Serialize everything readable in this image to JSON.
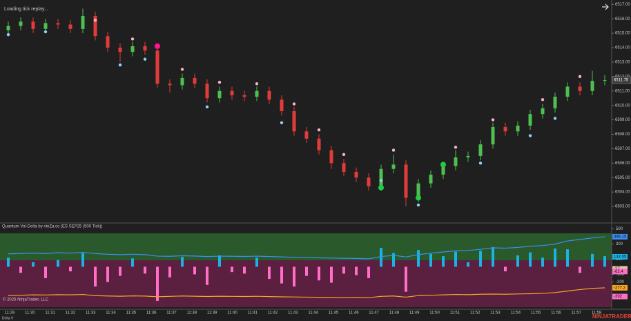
{
  "ui": {
    "status": "Loading tick replay...",
    "copyright": "© 2025 NinjaTrader, LLC",
    "panel_label": "Delta V",
    "brand": "NINJATRADER"
  },
  "chart_data": [
    {
      "type": "candlestick",
      "open": [
        6515.2,
        6515.5,
        6515.8,
        6515.3,
        6515.7,
        6515.6,
        6515.3,
        6516.2,
        6514.8,
        6514.0,
        6513.7,
        6514.1,
        6513.8,
        6511.5,
        6511.4,
        6511.9,
        6511.5,
        6510.5,
        6511.0,
        6510.7,
        6510.6,
        6511.0,
        6510.4,
        6509.6,
        6508.2,
        6507.7,
        6506.9,
        6506.0,
        6505.4,
        6505.0,
        6504.4,
        6505.6,
        6505.9,
        6503.6,
        6504.6,
        6505.2,
        6505.8,
        6506.4,
        6506.5,
        6507.3,
        6508.5,
        6508.2,
        6508.6,
        6509.4,
        6509.8,
        6510.6,
        6511.3,
        6511.0,
        6511.7
      ],
      "high": [
        6515.8,
        6516.1,
        6516.1,
        6516.0,
        6516.0,
        6515.9,
        6516.7,
        6516.5,
        6515.1,
        6514.3,
        6514.4,
        6514.4,
        6514.1,
        6511.8,
        6512.2,
        6512.2,
        6511.8,
        6511.3,
        6511.3,
        6511.0,
        6511.3,
        6511.3,
        6510.7,
        6509.9,
        6508.5,
        6508.0,
        6507.2,
        6506.3,
        6505.7,
        6505.3,
        6505.9,
        6506.6,
        6506.2,
        6504.9,
        6505.5,
        6506.1,
        6506.9,
        6506.8,
        6507.6,
        6508.8,
        6508.8,
        6508.9,
        6509.7,
        6510.1,
        6510.9,
        6511.6,
        6511.6,
        6512.4,
        6512.1
      ],
      "low": [
        6514.9,
        6515.2,
        6515.0,
        6515.0,
        6515.3,
        6515.0,
        6515.0,
        6514.5,
        6513.7,
        6513.0,
        6513.4,
        6513.5,
        6511.2,
        6510.9,
        6511.1,
        6511.2,
        6510.2,
        6510.2,
        6510.4,
        6510.3,
        6510.3,
        6510.1,
        6509.3,
        6507.9,
        6507.4,
        6506.6,
        6505.6,
        6505.1,
        6504.7,
        6504.1,
        6504.1,
        6505.3,
        6503.0,
        6503.3,
        6504.3,
        6504.9,
        6505.5,
        6506.1,
        6506.2,
        6507.0,
        6507.9,
        6507.9,
        6508.3,
        6509.1,
        6509.5,
        6510.3,
        6510.7,
        6510.7,
        6511.4
      ],
      "close": [
        6515.5,
        6515.8,
        6515.3,
        6515.7,
        6515.6,
        6515.3,
        6516.2,
        6514.8,
        6514.0,
        6513.7,
        6514.1,
        6513.8,
        6511.5,
        6511.4,
        6511.9,
        6511.5,
        6510.5,
        6511.0,
        6510.7,
        6510.6,
        6511.0,
        6510.4,
        6509.6,
        6508.2,
        6507.7,
        6506.9,
        6506.0,
        6505.4,
        6505.0,
        6504.4,
        6505.6,
        6505.9,
        6503.6,
        6504.6,
        6505.2,
        6505.8,
        6506.4,
        6506.5,
        6507.3,
        6508.5,
        6508.2,
        6508.6,
        6509.4,
        6509.8,
        6510.6,
        6511.3,
        6511.0,
        6511.7,
        6511.75
      ],
      "up_color": "#4fbf4f",
      "down_color": "#e23b3b",
      "markers": [
        {
          "color": "#f4b6c8",
          "size": 2.2,
          "points": [
            [
              7,
              6515.9
            ],
            [
              10,
              6514.6
            ],
            [
              14,
              6512.5
            ],
            [
              17,
              6511.6
            ],
            [
              20,
              6511.5
            ],
            [
              23,
              6510.1
            ],
            [
              25,
              6508.3
            ],
            [
              27,
              6506.6
            ],
            [
              31,
              6506.9
            ],
            [
              36,
              6507.1
            ],
            [
              39,
              6509.0
            ],
            [
              43,
              6510.4
            ],
            [
              46,
              6512.0
            ]
          ]
        },
        {
          "color": "#8fd3f0",
          "size": 2.2,
          "points": [
            [
              0,
              6514.9
            ],
            [
              3,
              6515.1
            ],
            [
              9,
              6512.8
            ],
            [
              11,
              6513.2
            ],
            [
              16,
              6509.9
            ],
            [
              22,
              6508.8
            ],
            [
              30,
              6504.8
            ],
            [
              33,
              6503.1
            ],
            [
              38,
              6506.0
            ],
            [
              42,
              6507.9
            ],
            [
              44,
              6509.1
            ]
          ]
        },
        {
          "color": "#ff1493",
          "size": 4,
          "points": [
            [
              12,
              6514.1
            ]
          ]
        },
        {
          "color": "#22cc44",
          "size": 4,
          "points": [
            [
              30,
              6504.3
            ],
            [
              33,
              6503.6
            ],
            [
              35,
              6505.9
            ]
          ]
        }
      ],
      "ylim": [
        6502,
        6517.3
      ],
      "yticks": [
        {
          "value": 6503,
          "label": "6503.00"
        },
        {
          "value": 6504,
          "label": "6504.00"
        },
        {
          "value": 6505,
          "label": "6505.00"
        },
        {
          "value": 6506,
          "label": "6506.00"
        },
        {
          "value": 6507,
          "label": "6507.00"
        },
        {
          "value": 6508,
          "label": "6508.00"
        },
        {
          "value": 6509,
          "label": "6509.00"
        },
        {
          "value": 6510,
          "label": "6510.00"
        },
        {
          "value": 6511,
          "label": "6511.00"
        },
        {
          "value": 6512,
          "label": "6512.00"
        },
        {
          "value": 6513,
          "label": "6513.00"
        },
        {
          "value": 6514,
          "label": "6514.00"
        },
        {
          "value": 6515,
          "label": "6515.00"
        },
        {
          "value": 6516,
          "label": "6516.00"
        },
        {
          "value": 6517,
          "label": "6517.00"
        }
      ]
    },
    {
      "type": "bar",
      "title": "Quantum Vol-Delta by ninZa.co (ES SEP25 (500 Tick))",
      "values": [
        120,
        -80,
        60,
        -150,
        90,
        -60,
        180,
        -260,
        -200,
        -120,
        110,
        -90,
        -450,
        -140,
        130,
        -100,
        -240,
        150,
        -70,
        -90,
        120,
        -160,
        -220,
        -260,
        -120,
        -180,
        -210,
        -90,
        -110,
        -150,
        250,
        180,
        -330,
        220,
        170,
        140,
        200,
        60,
        210,
        260,
        -60,
        150,
        190,
        120,
        240,
        230,
        -80,
        170,
        140
      ],
      "up_color": "#1ab3e6",
      "down_color": "#ff6ec7",
      "lines": [
        {
          "color": "#3a8ff0",
          "values": [
            170,
            175,
            180,
            175,
            185,
            180,
            190,
            175,
            165,
            160,
            165,
            160,
            140,
            138,
            145,
            142,
            135,
            140,
            138,
            136,
            140,
            135,
            130,
            125,
            122,
            118,
            115,
            112,
            110,
            105,
            135,
            150,
            130,
            160,
            180,
            195,
            210,
            215,
            230,
            250,
            245,
            255,
            270,
            280,
            300,
            340,
            360,
            380,
            396.15
          ]
        },
        {
          "color": "#f5a623",
          "values": [
            -380,
            -375,
            -370,
            -372,
            -368,
            -370,
            -365,
            -380,
            -385,
            -388,
            -384,
            -386,
            -395,
            -390,
            -385,
            -388,
            -392,
            -388,
            -390,
            -392,
            -389,
            -393,
            -396,
            -398,
            -400,
            -402,
            -404,
            -406,
            -405,
            -407,
            -390,
            -385,
            -400,
            -380,
            -375,
            -370,
            -365,
            -368,
            -362,
            -360,
            -362,
            -358,
            -355,
            -350,
            -340,
            -320,
            -300,
            -285,
            -277.2
          ]
        }
      ],
      "value_tags": [
        {
          "value": 396.15,
          "color": "#3a8ff0"
        },
        {
          "value": 132.05,
          "color": "#1ab3e6"
        },
        {
          "value": -27,
          "color": "#d9c9a0"
        },
        {
          "value": -62.4,
          "color": "#ff6ec7"
        },
        {
          "value": -277.2,
          "color": "#f5a623"
        },
        {
          "value": -392,
          "color": "#ff6ec7"
        }
      ],
      "ylim": [
        -560,
        550
      ],
      "yticks": [
        500,
        300,
        100,
        -100,
        -200,
        -400
      ],
      "x_labels": [
        "11:29",
        "11:30",
        "11:31",
        "11:32",
        "11:33",
        "11:34",
        "11:35",
        "11:36",
        "11:37",
        "11:38",
        "11:39",
        "11:40",
        "11:41",
        "11:42",
        "11:43",
        "11:44",
        "11:45",
        "11:46",
        "11:47",
        "11:48",
        "11:49",
        "11:50",
        "11:51",
        "11:52",
        "11:53",
        "11:54",
        "11:55",
        "11:56",
        "11:57",
        "11:58"
      ]
    }
  ]
}
